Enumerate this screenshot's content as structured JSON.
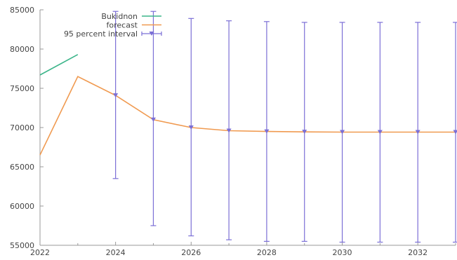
{
  "chart_data": {
    "type": "line",
    "title": "",
    "xlabel": "",
    "ylabel": "",
    "xlim": [
      2022,
      2033
    ],
    "ylim": [
      55000,
      85000
    ],
    "grid": false,
    "x_ticks": [
      2022,
      2024,
      2026,
      2028,
      2030,
      2032
    ],
    "y_ticks": [
      55000,
      60000,
      65000,
      70000,
      75000,
      80000,
      85000
    ],
    "legend_position": "top-left",
    "series": [
      {
        "name": "Bukidnon",
        "kind": "line",
        "color": "#3cb58a",
        "x": [
          2022,
          2023
        ],
        "y": [
          76700,
          79300
        ]
      },
      {
        "name": "forecast",
        "kind": "line",
        "color": "#f09a50",
        "x": [
          2022,
          2023,
          2024,
          2025,
          2026,
          2027,
          2028,
          2029,
          2030,
          2031,
          2032,
          2033
        ],
        "y": [
          66500,
          76500,
          74100,
          71000,
          70000,
          69600,
          69500,
          69450,
          69420,
          69420,
          69420,
          69420
        ]
      },
      {
        "name": "95 percent interval",
        "kind": "errorbar",
        "color": "#7b6fd6",
        "x": [
          2024,
          2025,
          2026,
          2027,
          2028,
          2029,
          2030,
          2031,
          2032,
          2033
        ],
        "y": [
          74100,
          71000,
          70000,
          69600,
          69500,
          69450,
          69420,
          69420,
          69420,
          69420
        ],
        "lower": [
          63500,
          57500,
          56200,
          55700,
          55500,
          55500,
          55400,
          55400,
          55400,
          55400
        ],
        "upper": [
          84800,
          84800,
          83900,
          83600,
          83500,
          83400,
          83400,
          83400,
          83400,
          83400
        ]
      }
    ]
  }
}
